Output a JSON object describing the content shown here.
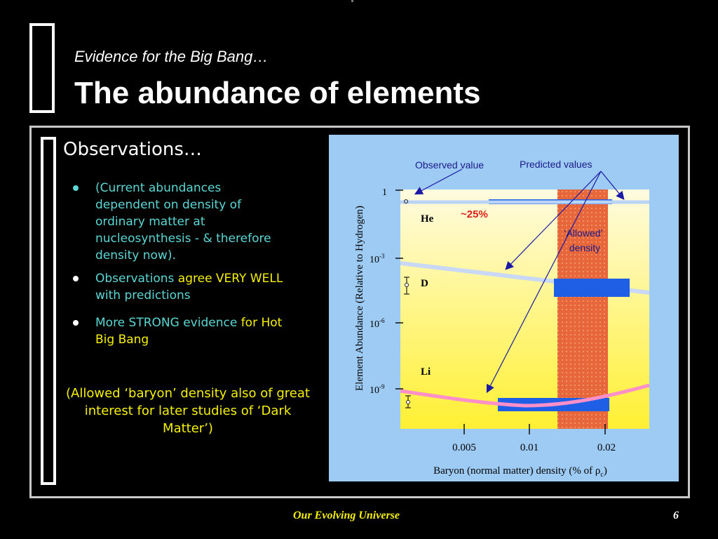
{
  "header": {
    "subtitle": "Evidence for the Big Bang…",
    "title": "The abundance of elements"
  },
  "observations": {
    "heading": "Observations…",
    "bullets": [
      {
        "text": "(Current abundances dependent on density of ordinary matter at nucleosynthesis - & therefore density now).",
        "color": "#5ad7d4"
      },
      {
        "parts": [
          "Observations ",
          "agree VERY WELL",
          " with predictions"
        ]
      },
      {
        "parts": [
          "More STRONG evidence ",
          "for Hot Big Bang"
        ]
      }
    ],
    "note": "(Allowed ‘baryon’ density also of great interest for later studies of ‘Dark Matter’)"
  },
  "diagram": {
    "callouts": {
      "observed": "Observed value",
      "predicted": "Predicted values",
      "he_percent": "~25%",
      "allowed_line1": "‘Allowed’",
      "allowed_line2": "density"
    },
    "y_axis_label": "Element Abundance (Relative to Hydrogen)",
    "y_ticks": [
      {
        "base": "1",
        "exp": ""
      },
      {
        "base": "10",
        "exp": "-3"
      },
      {
        "base": "10",
        "exp": "-6"
      },
      {
        "base": "10",
        "exp": "-9"
      }
    ],
    "x_ticks": [
      "0.005",
      "0.01",
      "0.02"
    ],
    "x_axis_label_prefix": "Baryon (normal matter)  density (% of ρ",
    "x_axis_label_sub": "c",
    "x_axis_label_suffix": ")",
    "elements": [
      "He",
      "D",
      "Li"
    ],
    "colors": {
      "background": "#9ecbf3",
      "plot_top": "#fffbe0",
      "plot_bottom": "#fff033",
      "allowed_band": "#e8673a",
      "prediction_line": "#b9d4f5",
      "li_curve": "#ff8fc8",
      "box": "#1f5fe6",
      "arrow": "#1a1aa6"
    }
  },
  "footer": {
    "course": "Our Evolving Universe",
    "page": "6"
  }
}
